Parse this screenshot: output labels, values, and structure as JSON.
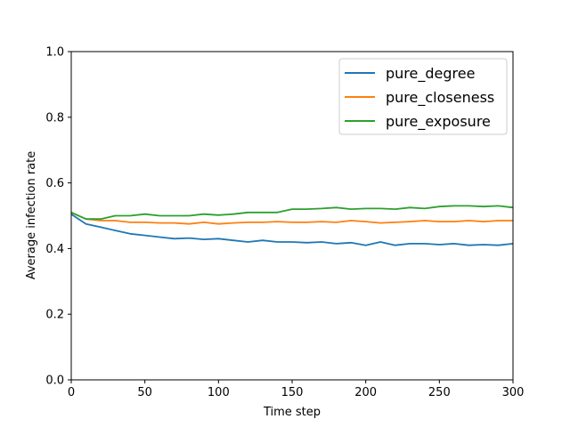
{
  "chart_data": {
    "type": "line",
    "title": "",
    "xlabel": "Time step",
    "ylabel": "Average infection rate",
    "xlim": [
      0,
      300
    ],
    "ylim": [
      0.0,
      1.0
    ],
    "x_ticks": [
      0,
      50,
      100,
      150,
      200,
      250,
      300
    ],
    "x_tick_labels": [
      "0",
      "50",
      "100",
      "150",
      "200",
      "250",
      "300"
    ],
    "y_ticks": [
      0.0,
      0.2,
      0.4,
      0.6,
      0.8,
      1.0
    ],
    "y_tick_labels": [
      "0.0",
      "0.2",
      "0.4",
      "0.6",
      "0.8",
      "1.0"
    ],
    "grid": false,
    "legend": {
      "placement": "top-right"
    },
    "x": [
      0,
      10,
      20,
      30,
      40,
      50,
      60,
      70,
      80,
      90,
      100,
      110,
      120,
      130,
      140,
      150,
      160,
      170,
      180,
      190,
      200,
      210,
      220,
      230,
      240,
      250,
      260,
      270,
      280,
      290,
      300
    ],
    "series": [
      {
        "name": "pure_degree",
        "color": "#1f77b4",
        "values": [
          0.505,
          0.475,
          0.465,
          0.455,
          0.445,
          0.44,
          0.435,
          0.43,
          0.432,
          0.428,
          0.43,
          0.425,
          0.42,
          0.425,
          0.42,
          0.42,
          0.418,
          0.42,
          0.415,
          0.418,
          0.41,
          0.42,
          0.41,
          0.415,
          0.415,
          0.412,
          0.415,
          0.41,
          0.412,
          0.41,
          0.415
        ]
      },
      {
        "name": "pure_closeness",
        "color": "#ff7f0e",
        "values": [
          0.51,
          0.49,
          0.485,
          0.485,
          0.48,
          0.48,
          0.478,
          0.478,
          0.475,
          0.48,
          0.475,
          0.478,
          0.48,
          0.48,
          0.482,
          0.48,
          0.48,
          0.482,
          0.48,
          0.485,
          0.482,
          0.478,
          0.48,
          0.482,
          0.485,
          0.482,
          0.482,
          0.485,
          0.482,
          0.485,
          0.485
        ]
      },
      {
        "name": "pure_exposure",
        "color": "#2ca02c",
        "values": [
          0.51,
          0.49,
          0.49,
          0.5,
          0.5,
          0.505,
          0.5,
          0.5,
          0.5,
          0.505,
          0.502,
          0.505,
          0.51,
          0.51,
          0.51,
          0.52,
          0.52,
          0.522,
          0.525,
          0.52,
          0.522,
          0.522,
          0.52,
          0.525,
          0.522,
          0.528,
          0.53,
          0.53,
          0.528,
          0.53,
          0.525
        ]
      }
    ]
  }
}
